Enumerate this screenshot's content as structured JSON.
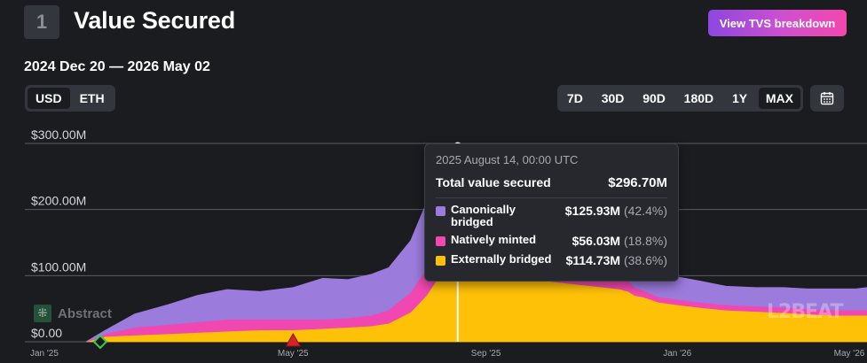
{
  "header": {
    "section_number": "1",
    "title": "Value Secured",
    "breakdown_label": "View TVS breakdown",
    "date_range": "2024 Dec 20 — 2026 May 02"
  },
  "controls": {
    "currency": [
      {
        "label": "USD",
        "active": true
      },
      {
        "label": "ETH",
        "active": false
      }
    ],
    "ranges": [
      {
        "label": "7D",
        "active": false
      },
      {
        "label": "30D",
        "active": false
      },
      {
        "label": "90D",
        "active": false
      },
      {
        "label": "180D",
        "active": false
      },
      {
        "label": "1Y",
        "active": false
      },
      {
        "label": "MAX",
        "active": true
      }
    ],
    "calendar_icon": "calendar-icon"
  },
  "tooltip": {
    "date": "2025 August 14, 00:00 UTC",
    "total_label": "Total value secured",
    "total_value": "$296.70M",
    "rows": [
      {
        "label": "Canonically bridged",
        "value": "$125.93M",
        "pct": "(42.4%)",
        "color": "#9b7bdc"
      },
      {
        "label": "Natively minted",
        "value": "$56.03M",
        "pct": "(18.8%)",
        "color": "#f147b1"
      },
      {
        "label": "Externally bridged",
        "value": "$114.73M",
        "pct": "(38.6%)",
        "color": "#ffc107"
      }
    ]
  },
  "chart_logo": {
    "icon": "abstract-logo-icon",
    "text": "Abstract"
  },
  "watermark": "L2BEAT",
  "chart_data": {
    "type": "area",
    "stacked": true,
    "y_tick_labels": [
      "$0.00",
      "$100.00M",
      "$200.00M",
      "$300.00M"
    ],
    "y_ticks": [
      0,
      100,
      200,
      300
    ],
    "ylim": [
      0,
      300
    ],
    "x_tick_labels": [
      "Jan '25",
      "May '25",
      "Sep '25",
      "Jan '26",
      "May '26"
    ],
    "x_tick_dates": [
      "2025-01-01",
      "2025-05-01",
      "2025-09-01",
      "2026-01-01",
      "2026-05-01"
    ],
    "xlim": [
      "2024-12-20",
      "2026-05-02"
    ],
    "grid": true,
    "x": [
      "2024-12-20",
      "2025-01-01",
      "2025-01-20",
      "2025-02-10",
      "2025-03-01",
      "2025-03-20",
      "2025-04-10",
      "2025-05-01",
      "2025-05-20",
      "2025-06-05",
      "2025-06-20",
      "2025-07-01",
      "2025-07-15",
      "2025-07-25",
      "2025-08-01",
      "2025-08-07",
      "2025-08-14",
      "2025-08-25",
      "2025-09-01",
      "2025-09-10",
      "2025-09-25",
      "2025-10-10",
      "2025-10-25",
      "2025-11-10",
      "2025-11-25",
      "2025-12-01",
      "2025-12-05",
      "2025-12-10",
      "2025-12-20",
      "2026-01-01",
      "2026-01-15",
      "2026-02-01",
      "2026-02-20",
      "2026-03-10",
      "2026-03-25",
      "2026-04-10",
      "2026-04-25",
      "2026-05-02"
    ],
    "series": [
      {
        "name": "Externally bridged",
        "color": "#ffc107",
        "values": [
          0,
          8,
          10,
          12,
          14,
          16,
          18,
          18,
          20,
          22,
          24,
          28,
          45,
          70,
          95,
          108,
          114.73,
          112,
          106,
          102,
          98,
          92,
          88,
          84,
          80,
          76,
          70,
          68,
          60,
          56,
          52,
          48,
          46,
          44,
          42,
          40,
          40,
          40
        ]
      },
      {
        "name": "Natively minted",
        "color": "#f147b1",
        "values": [
          0,
          4,
          12,
          14,
          16,
          18,
          16,
          16,
          14,
          14,
          16,
          20,
          30,
          40,
          50,
          54,
          56.03,
          52,
          46,
          40,
          34,
          28,
          24,
          20,
          18,
          16,
          12,
          10,
          8,
          8,
          8,
          8,
          8,
          8,
          8,
          8,
          8,
          8
        ]
      },
      {
        "name": "Canonically bridged",
        "color": "#9b7bdc",
        "values": [
          0,
          5,
          20,
          30,
          40,
          45,
          42,
          48,
          62,
          58,
          62,
          64,
          78,
          100,
          110,
          122,
          125.93,
          114,
          90,
          82,
          72,
          66,
          60,
          55,
          50,
          46,
          44,
          42,
          32,
          34,
          32,
          28,
          28,
          30,
          30,
          32,
          32,
          34
        ]
      }
    ],
    "markers": [
      {
        "date": "2024-12-29",
        "shape": "diamond",
        "color": "#3ccb4c"
      },
      {
        "date": "2025-05-01",
        "shape": "triangle",
        "color": "#d3242c"
      }
    ],
    "hover_date": "2025-08-14"
  }
}
